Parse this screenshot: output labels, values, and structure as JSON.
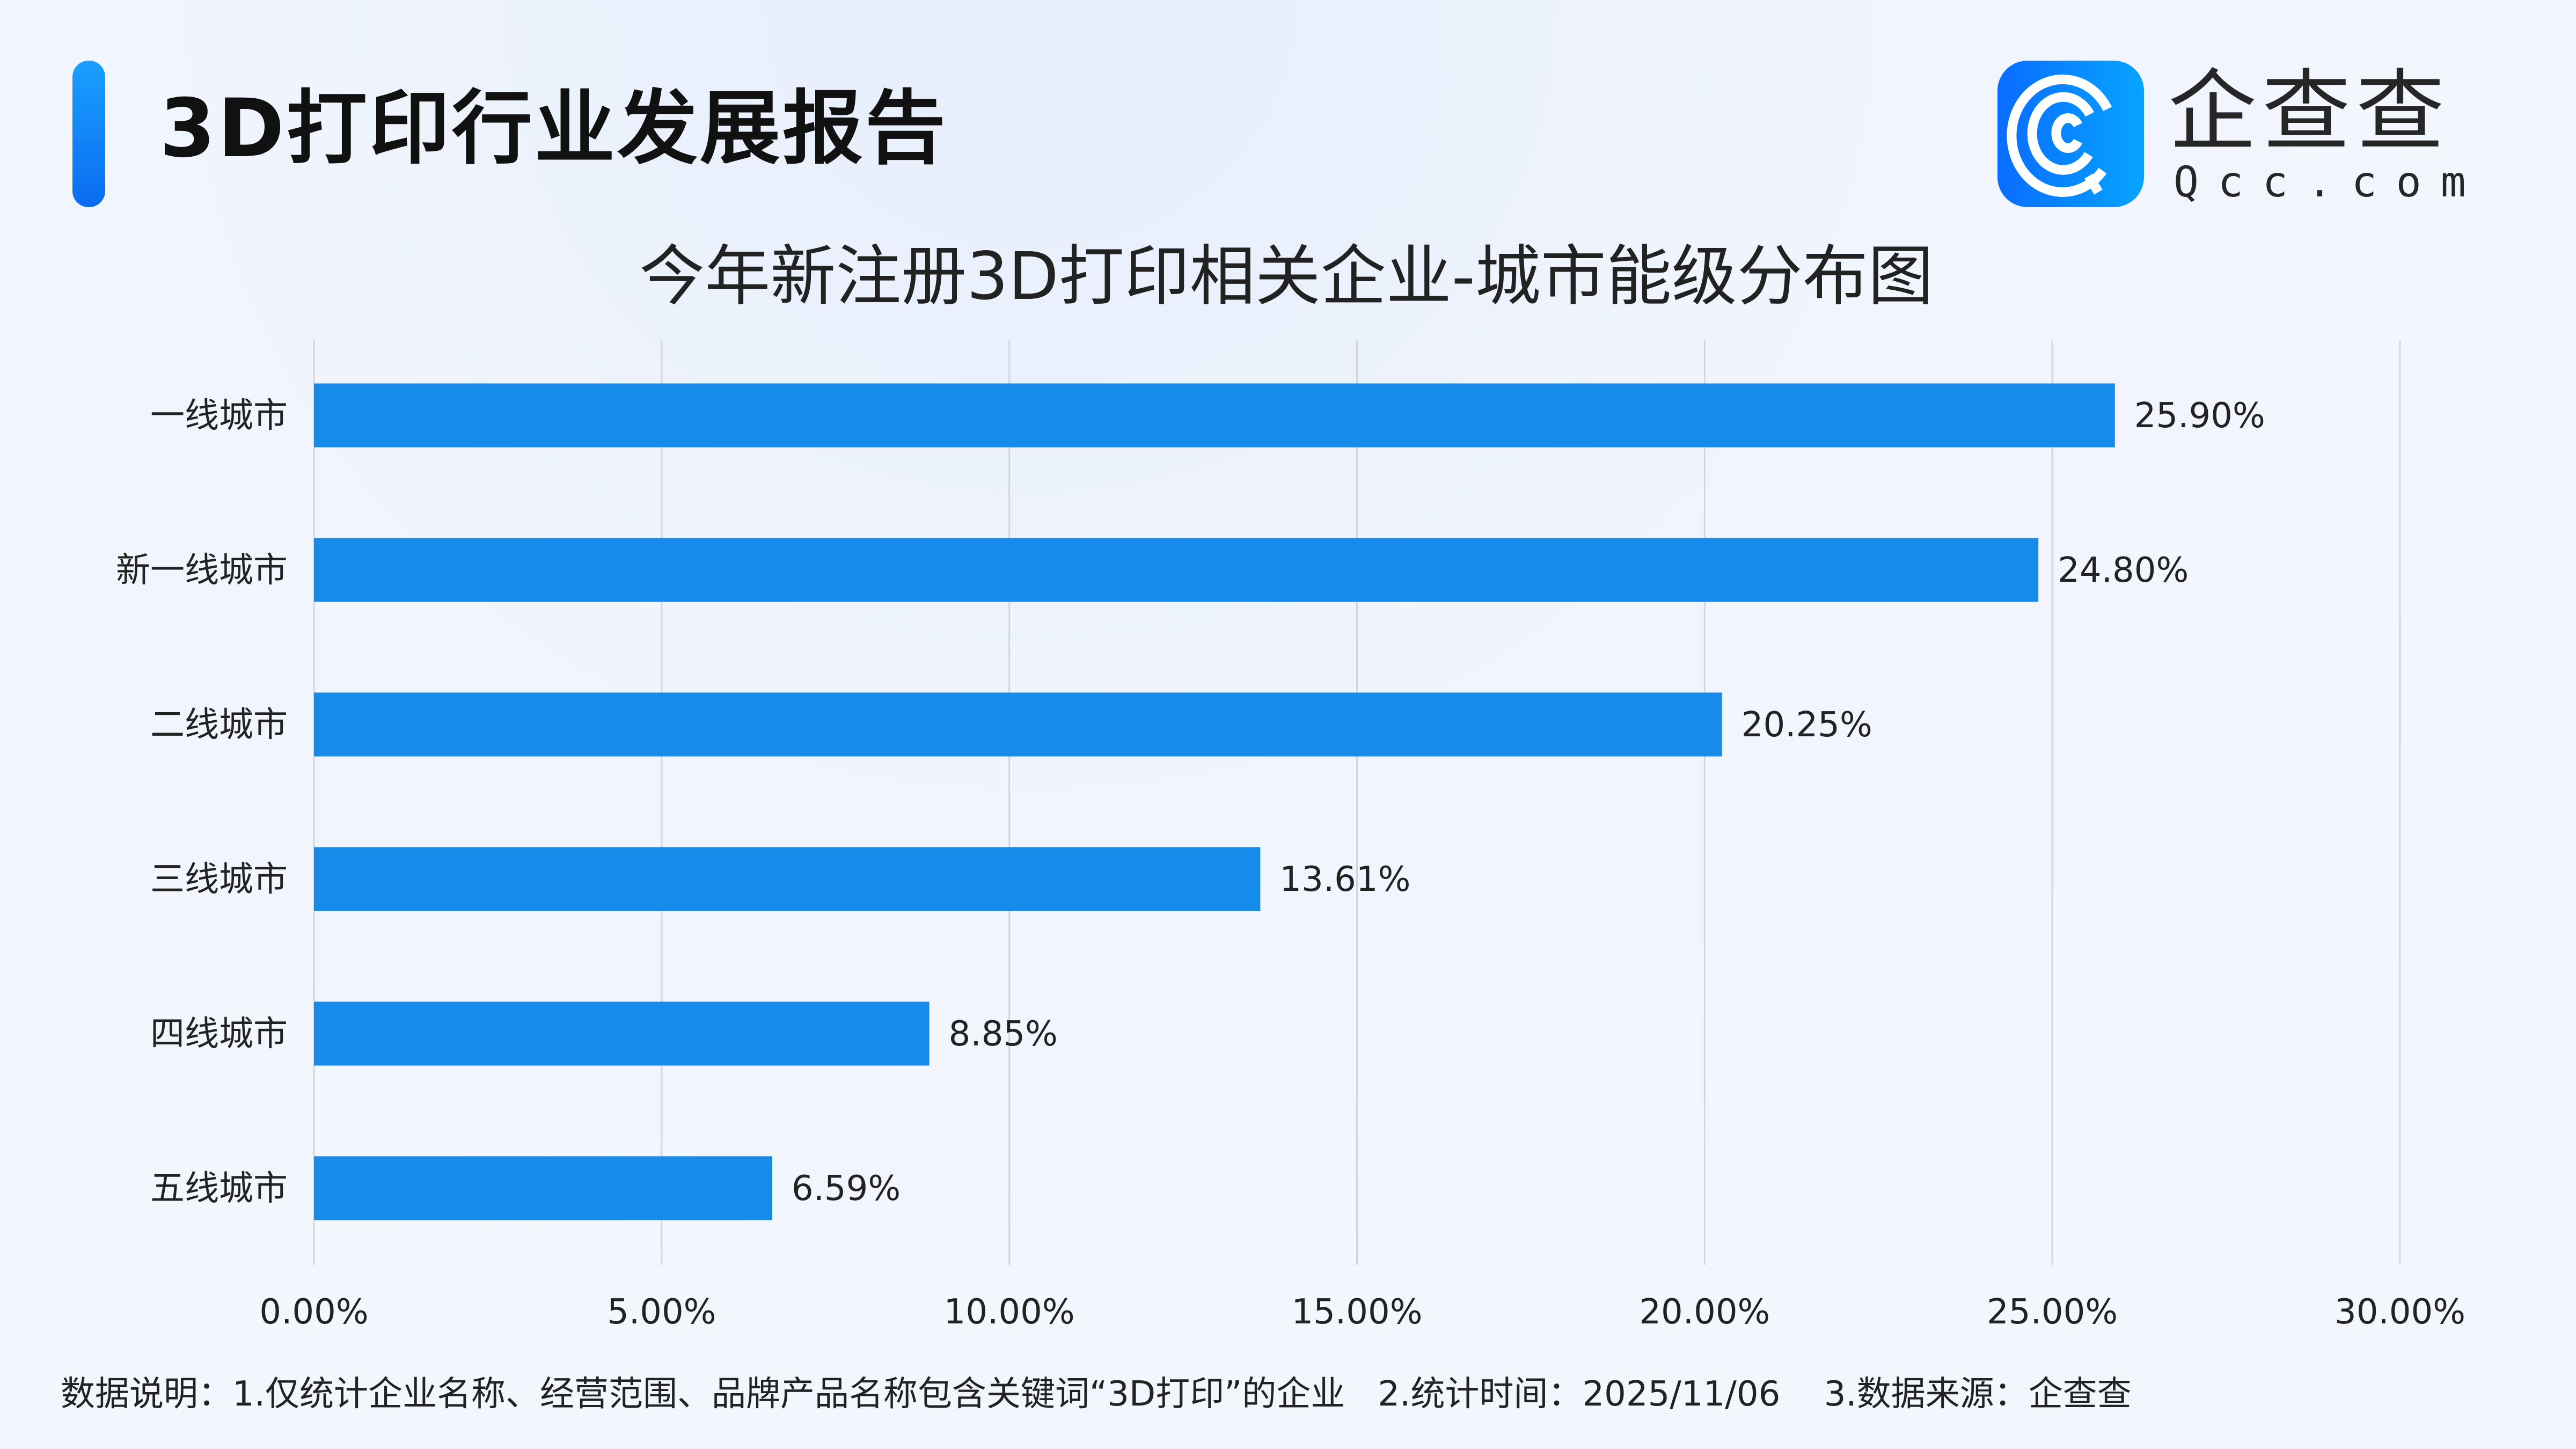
{
  "header": {
    "title": "3D打印行业发展报告",
    "logo_cn": "企查查",
    "logo_en": "Qcc.com"
  },
  "colors": {
    "bar": "#168BEA",
    "accent": "#0A7CF5",
    "grid": "#D3D6DC"
  },
  "chart_data": {
    "type": "bar",
    "orientation": "horizontal",
    "title": "今年新注册3D打印相关企业-城市能级分布图",
    "categories": [
      "一线城市",
      "新一线城市",
      "二线城市",
      "三线城市",
      "四线城市",
      "五线城市"
    ],
    "values": [
      25.9,
      24.8,
      20.25,
      13.61,
      8.85,
      6.59
    ],
    "value_labels": [
      "25.90%",
      "24.80%",
      "20.25%",
      "13.61%",
      "8.85%",
      "6.59%"
    ],
    "xlim": [
      0,
      30
    ],
    "x_ticks": [
      0,
      5,
      10,
      15,
      20,
      25,
      30
    ],
    "x_tick_labels": [
      "0.00%",
      "5.00%",
      "10.00%",
      "15.00%",
      "20.00%",
      "25.00%",
      "30.00%"
    ],
    "grid": "vertical",
    "legend": "none"
  },
  "footnote": "数据说明：1.仅统计企业名称、经营范围、品牌产品名称包含关键词“3D打印”的企业   2.统计时间：2025/11/06    3.数据来源：企查查"
}
